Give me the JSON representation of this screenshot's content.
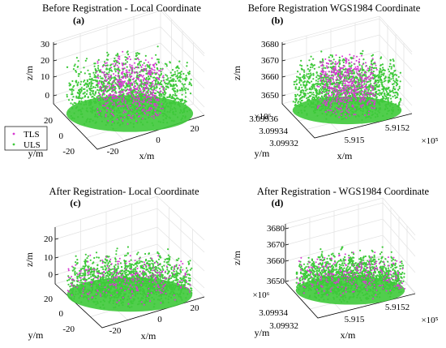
{
  "chart_data": [
    {
      "type": "scatter",
      "id": "a",
      "panel_label": "(a)",
      "title": "Before Registration - Local Coordinate",
      "xlabel": "x/m",
      "ylabel": "y/m",
      "zlabel": "z/m",
      "xticks": [
        "-20",
        "0",
        "20"
      ],
      "yticks": [
        "-20",
        "0",
        "20"
      ],
      "zticks": [
        "0",
        "10",
        "20",
        "30"
      ],
      "offset_x": "",
      "offset_y": "",
      "xlim": [
        -25,
        25
      ],
      "ylim": [
        -25,
        25
      ],
      "zlim": [
        -4,
        30
      ],
      "registered": false,
      "series": [
        {
          "name": "TLS",
          "color": "#d63ad1",
          "z_range": [
            0,
            25
          ]
        },
        {
          "name": "ULS",
          "color": "#3ec93a",
          "z_range": [
            -2,
            28
          ]
        }
      ]
    },
    {
      "type": "scatter",
      "id": "b",
      "panel_label": "(b)",
      "title": "Before Registration WGS1984 Coordinate",
      "xlabel": "x/m",
      "ylabel": "y/m",
      "zlabel": "z/m",
      "xticks": [
        "5.915",
        "5.9152"
      ],
      "yticks": [
        "3.09932",
        "3.09934",
        "3.09936"
      ],
      "zticks": [
        "3650",
        "3660",
        "3670",
        "3680"
      ],
      "offset_x": "×10⁵",
      "offset_y": "×10⁶",
      "zlim": [
        3646,
        3684
      ],
      "registered": false,
      "series": [
        {
          "name": "TLS",
          "color": "#d63ad1"
        },
        {
          "name": "ULS",
          "color": "#3ec93a"
        }
      ]
    },
    {
      "type": "scatter",
      "id": "c",
      "panel_label": "(c)",
      "title": "After Registration- Local Coordinate",
      "xlabel": "x/m",
      "ylabel": "y/m",
      "zlabel": "z/m",
      "xticks": [
        "-20",
        "0",
        "20"
      ],
      "yticks": [
        "-20",
        "0",
        "20"
      ],
      "zticks": [
        "0",
        "10",
        "20"
      ],
      "offset_x": "",
      "offset_y": "",
      "xlim": [
        -25,
        25
      ],
      "ylim": [
        -25,
        25
      ],
      "zlim": [
        -4,
        26
      ],
      "registered": true,
      "series": [
        {
          "name": "TLS",
          "color": "#d63ad1"
        },
        {
          "name": "ULS",
          "color": "#3ec93a"
        }
      ]
    },
    {
      "type": "scatter",
      "id": "d",
      "panel_label": "(d)",
      "title": "After Registration - WGS1984 Coordinate",
      "xlabel": "x/m",
      "ylabel": "y/m",
      "zlabel": "z/m",
      "xticks": [
        "5.915",
        "5.9152"
      ],
      "yticks": [
        "3.09932",
        "3.09934"
      ],
      "zticks": [
        "3650",
        "3660",
        "3670",
        "3680"
      ],
      "offset_x": "×10⁵",
      "offset_y": "×10⁶",
      "zlim": [
        3646,
        3684
      ],
      "registered": true,
      "series": [
        {
          "name": "TLS",
          "color": "#d63ad1"
        },
        {
          "name": "ULS",
          "color": "#3ec93a"
        }
      ]
    }
  ],
  "legend": {
    "placement": "left",
    "entries": [
      {
        "label": "TLS",
        "color": "#d63ad1"
      },
      {
        "label": "ULS",
        "color": "#3ec93a"
      }
    ]
  }
}
